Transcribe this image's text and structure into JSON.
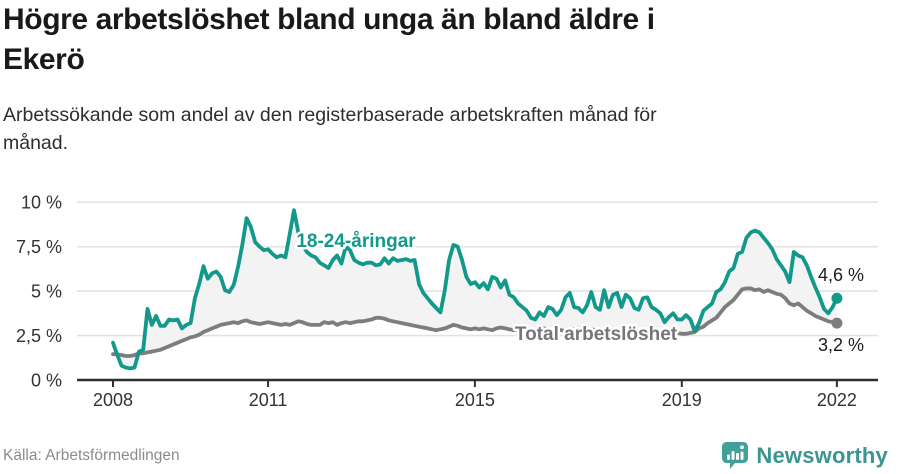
{
  "title_lines": [
    "Högre arbetslöshet bland unga än bland äldre i",
    "Ekerö"
  ],
  "subtitle_lines": [
    "Arbetssökande som andel av den registerbaserade arbetskraften månad för",
    "månad."
  ],
  "source": "Källa: Arbetsförmedlingen",
  "logo": {
    "name": "Newsworthy",
    "icon": "newsworthy-speech-bubble-bar-chart-icon"
  },
  "colors": {
    "young_line": "#12998b",
    "total_line": "#7d7d7d",
    "between_fill": "#f3f3f3",
    "logo_teal": "#43a098",
    "logo_text": "#3a968e",
    "axis_text": "#333333"
  },
  "chart_data": {
    "type": "line",
    "frequency": "monthly",
    "x_start_year": 2008,
    "x_end_year": 2022,
    "unit": "%",
    "grid": "horizontal-only",
    "legend_position": "inline-labels",
    "ylim": [
      0,
      10.5
    ],
    "x_tick_labels": [
      "2008",
      "2011",
      "2015",
      "2019",
      "2022"
    ],
    "y_tick_labels": [
      "10 %",
      "7,5 %",
      "5 %",
      "2,5 %",
      "0 %"
    ],
    "series": [
      {
        "name": "18-24-åringar",
        "color": "#12998b",
        "end_label": "4,6 %",
        "end_value": 4.6,
        "values": [
          2.1,
          1.4,
          0.8,
          0.7,
          0.65,
          0.7,
          1.6,
          1.7,
          4.0,
          3.1,
          3.6,
          3.05,
          3.05,
          3.4,
          3.35,
          3.4,
          2.9,
          3.1,
          3.2,
          4.6,
          5.4,
          6.4,
          5.7,
          6.0,
          6.1,
          5.8,
          5.05,
          4.95,
          5.35,
          6.35,
          7.6,
          9.1,
          8.6,
          7.75,
          7.5,
          7.3,
          7.35,
          7.1,
          6.9,
          7.0,
          6.9,
          8.2,
          9.55,
          8.3,
          7.6,
          7.2,
          7.0,
          6.9,
          6.6,
          6.45,
          6.3,
          6.75,
          7.0,
          6.55,
          7.5,
          7.3,
          6.75,
          6.6,
          6.5,
          6.6,
          6.6,
          6.45,
          6.5,
          6.85,
          6.55,
          6.85,
          6.7,
          6.75,
          6.8,
          6.7,
          6.75,
          5.4,
          4.9,
          4.6,
          4.3,
          4.05,
          3.8,
          5.05,
          6.75,
          7.6,
          7.5,
          6.75,
          5.8,
          5.4,
          5.5,
          5.2,
          5.45,
          5.1,
          5.8,
          5.7,
          5.2,
          5.6,
          4.8,
          4.65,
          4.3,
          4.1,
          3.9,
          3.5,
          3.4,
          3.8,
          3.6,
          4.1,
          4.0,
          3.65,
          3.95,
          4.65,
          4.9,
          4.1,
          4.05,
          3.8,
          4.2,
          4.95,
          4.1,
          3.95,
          5.05,
          4.1,
          4.8,
          4.9,
          4.1,
          4.8,
          4.6,
          4.05,
          3.95,
          4.6,
          4.65,
          4.1,
          3.95,
          3.75,
          3.25,
          3.55,
          3.75,
          3.4,
          3.4,
          3.65,
          3.4,
          2.75,
          3.2,
          3.9,
          4.1,
          4.3,
          4.95,
          5.1,
          5.5,
          6.1,
          6.3,
          7.1,
          7.2,
          8.0,
          8.3,
          8.4,
          8.3,
          8.0,
          7.7,
          7.35,
          6.8,
          6.45,
          6.1,
          5.5,
          7.2,
          7.0,
          6.9,
          6.45,
          5.8,
          5.2,
          4.65,
          4.0,
          3.75,
          4.1,
          4.6
        ]
      },
      {
        "name": "Total arbetslöshet",
        "color": "#7d7d7d",
        "end_label": "3,2 %",
        "end_value": 3.2,
        "values": [
          1.45,
          1.45,
          1.4,
          1.35,
          1.35,
          1.4,
          1.5,
          1.5,
          1.55,
          1.6,
          1.65,
          1.7,
          1.8,
          1.9,
          2.0,
          2.1,
          2.2,
          2.3,
          2.4,
          2.45,
          2.55,
          2.7,
          2.8,
          2.9,
          3.0,
          3.1,
          3.15,
          3.2,
          3.25,
          3.2,
          3.3,
          3.35,
          3.25,
          3.2,
          3.15,
          3.2,
          3.25,
          3.2,
          3.15,
          3.1,
          3.15,
          3.1,
          3.2,
          3.3,
          3.25,
          3.15,
          3.1,
          3.1,
          3.1,
          3.25,
          3.2,
          3.25,
          3.1,
          3.2,
          3.25,
          3.2,
          3.25,
          3.3,
          3.3,
          3.35,
          3.4,
          3.5,
          3.5,
          3.45,
          3.35,
          3.3,
          3.25,
          3.2,
          3.15,
          3.1,
          3.05,
          3.0,
          2.95,
          2.9,
          2.85,
          2.8,
          2.85,
          2.9,
          3.0,
          3.1,
          3.05,
          2.95,
          2.9,
          2.85,
          2.9,
          2.85,
          2.9,
          2.85,
          2.8,
          2.9,
          2.95,
          2.9,
          2.85,
          2.8,
          2.85,
          2.9,
          2.9,
          2.85,
          2.8,
          2.85,
          2.9,
          2.85,
          2.8,
          2.85,
          2.8,
          2.75,
          2.8,
          2.85,
          2.8,
          2.75,
          2.8,
          2.85,
          2.8,
          2.75,
          2.8,
          2.75,
          2.7,
          2.75,
          2.8,
          2.75,
          2.7,
          2.75,
          2.7,
          2.65,
          2.7,
          2.65,
          2.6,
          2.65,
          2.6,
          2.55,
          2.6,
          2.65,
          2.6,
          2.6,
          2.65,
          2.7,
          2.9,
          3.0,
          3.2,
          3.35,
          3.5,
          3.8,
          4.1,
          4.3,
          4.5,
          4.8,
          5.1,
          5.15,
          5.15,
          5.05,
          5.1,
          4.95,
          5.05,
          4.95,
          4.85,
          4.8,
          4.6,
          4.3,
          4.2,
          4.3,
          4.1,
          3.9,
          3.75,
          3.6,
          3.5,
          3.4,
          3.3,
          3.25,
          3.2
        ]
      }
    ]
  }
}
